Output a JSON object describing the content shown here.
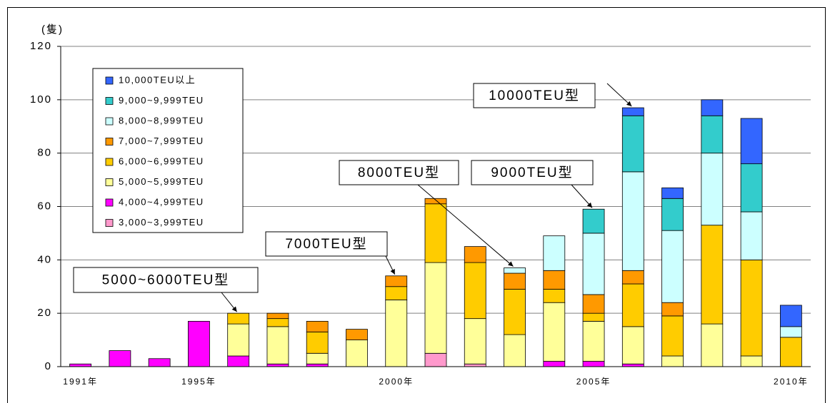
{
  "chart_data": {
    "type": "stacked_bar",
    "y_unit_label": "(隻)",
    "categories": [
      "1991年",
      null,
      null,
      "1995年",
      null,
      null,
      null,
      null,
      "2000年",
      null,
      null,
      null,
      null,
      "2005年",
      null,
      null,
      null,
      null,
      "2010年"
    ],
    "series": [
      {
        "name": "3,000~3,999TEU",
        "color": "#ff99cc",
        "values": [
          0,
          0,
          0,
          0,
          0,
          0,
          0,
          0,
          0,
          5,
          1,
          0,
          0,
          0,
          0,
          0,
          0,
          0,
          0
        ]
      },
      {
        "name": "4,000~4,999TEU",
        "color": "#ff00ff",
        "values": [
          1,
          6,
          3,
          17,
          4,
          1,
          1,
          0,
          0,
          0,
          0,
          0,
          2,
          2,
          1,
          0,
          0,
          0,
          0
        ]
      },
      {
        "name": "5,000~5,999TEU",
        "color": "#ffff99",
        "values": [
          0,
          0,
          0,
          0,
          12,
          14,
          4,
          10,
          25,
          34,
          17,
          12,
          22,
          15,
          14,
          4,
          16,
          4,
          0
        ]
      },
      {
        "name": "6,000~6,999TEU",
        "color": "#ffcc00",
        "values": [
          0,
          0,
          0,
          0,
          4,
          3,
          8,
          0,
          5,
          22,
          21,
          17,
          5,
          3,
          16,
          15,
          37,
          36,
          11
        ]
      },
      {
        "name": "7,000~7,999TEU",
        "color": "#ff9900",
        "values": [
          0,
          0,
          0,
          0,
          0,
          2,
          4,
          4,
          4,
          2,
          6,
          6,
          7,
          7,
          5,
          5,
          0,
          0,
          0
        ]
      },
      {
        "name": "8,000~8,999TEU",
        "color": "#ccffff",
        "values": [
          0,
          0,
          0,
          0,
          0,
          0,
          0,
          0,
          0,
          0,
          0,
          2,
          13,
          23,
          37,
          27,
          27,
          18,
          4
        ]
      },
      {
        "name": "9,000~9,999TEU",
        "color": "#33cccc",
        "values": [
          0,
          0,
          0,
          0,
          0,
          0,
          0,
          0,
          0,
          0,
          0,
          0,
          0,
          9,
          21,
          12,
          14,
          18,
          0
        ]
      },
      {
        "name": "10,000TEU以上",
        "color": "#3366ff",
        "values": [
          0,
          0,
          0,
          0,
          0,
          0,
          0,
          0,
          0,
          0,
          0,
          0,
          0,
          0,
          3,
          4,
          6,
          17,
          8
        ]
      }
    ],
    "ylim": [
      0,
      120
    ],
    "yticks": [
      0,
      20,
      40,
      60,
      80,
      100,
      120
    ],
    "grid": true,
    "annotations": [
      "10000TEU型",
      "9000TEU型",
      "8000TEU型",
      "7000TEU型",
      "5000~6000TEU型"
    ]
  }
}
